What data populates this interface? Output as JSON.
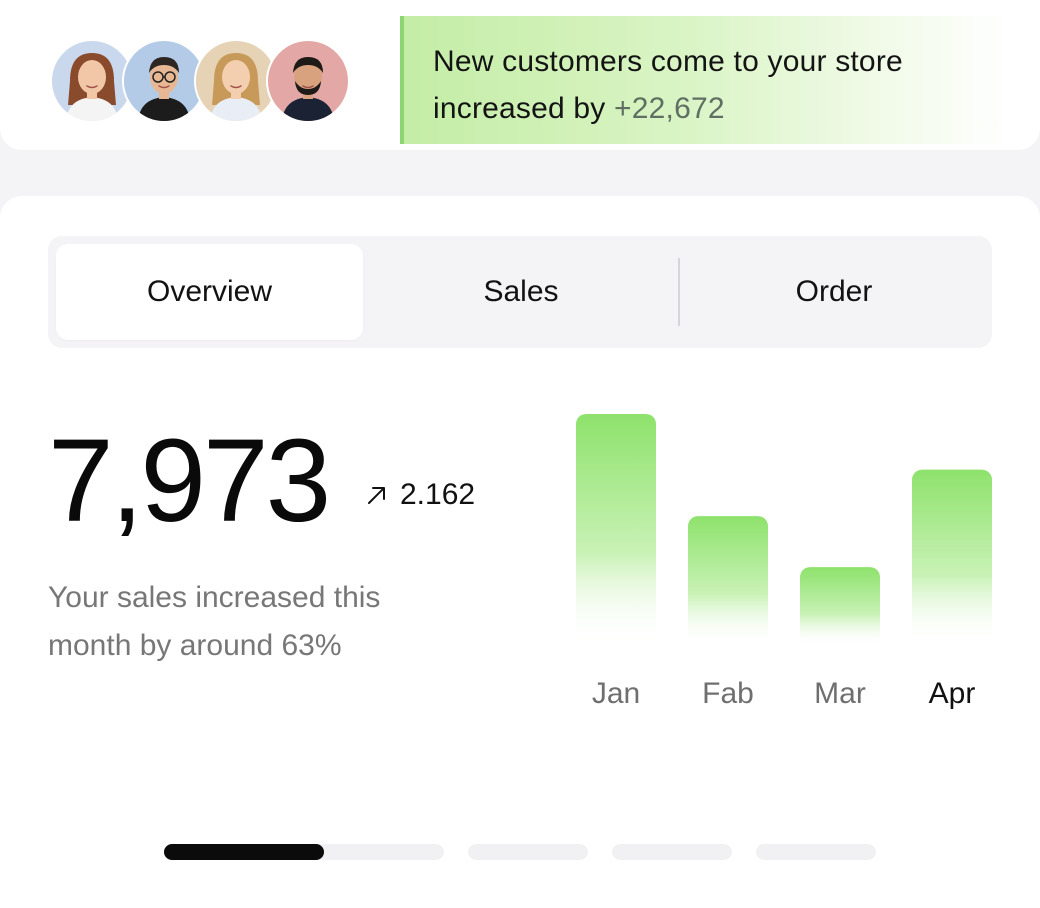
{
  "notification": {
    "avatars": [
      {
        "name": "avatar-woman-curly-hair",
        "bg": "#c9d8ec"
      },
      {
        "name": "avatar-man-glasses",
        "bg": "#b4cbe8"
      },
      {
        "name": "avatar-woman-long-hair",
        "bg": "#e6d2b5"
      },
      {
        "name": "avatar-man-beard",
        "bg": "#e3a7a6"
      }
    ],
    "text_prefix": "New customers come to your store increased by ",
    "highlight": "+22,672",
    "accent": "#8ed672"
  },
  "tabs": [
    {
      "label": "Overview",
      "active": true
    },
    {
      "label": "Sales",
      "active": false
    },
    {
      "label": "Order",
      "active": false
    }
  ],
  "stats": {
    "value": "7,973",
    "delta_icon": "arrow-up-right-icon",
    "delta": "2.162",
    "description": "Your sales increased this month by around 63%"
  },
  "chart_data": {
    "type": "bar",
    "categories": [
      "Jan",
      "Fab",
      "Mar",
      "Apr"
    ],
    "values": [
      100,
      56,
      34,
      76
    ],
    "highlighted": "Apr",
    "bar_color": "#8ee26c"
  },
  "pager": {
    "pages": 4,
    "current": 1,
    "current_progress": 0.57
  }
}
